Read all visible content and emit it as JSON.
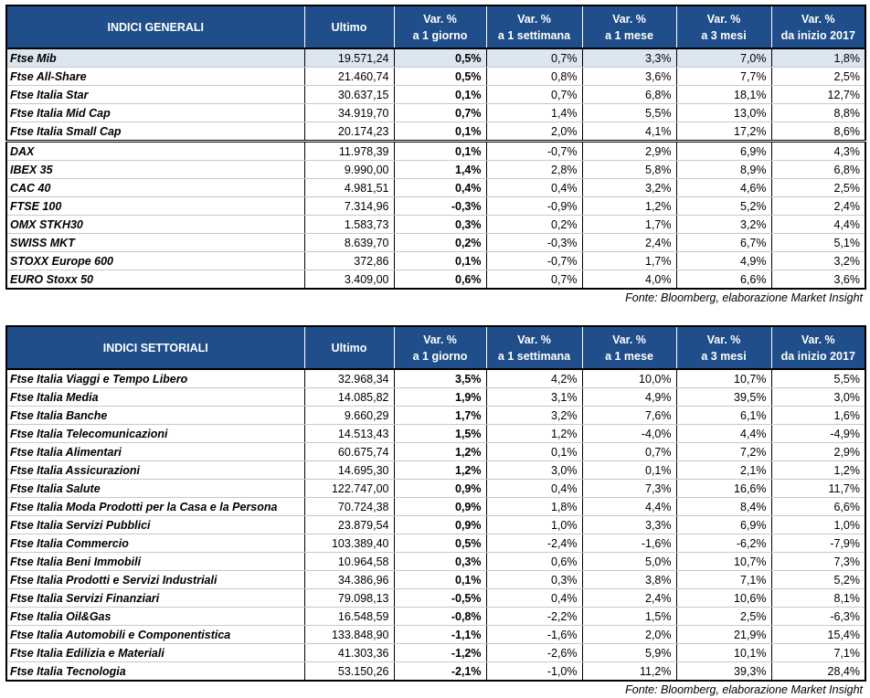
{
  "tables": [
    {
      "header": {
        "title": "INDICI GENERALI",
        "columns": [
          [
            "Ultimo"
          ],
          [
            "Var. %",
            "a 1 giorno"
          ],
          [
            "Var. %",
            "a 1 settimana"
          ],
          [
            "Var. %",
            "a 1 mese"
          ],
          [
            "Var. %",
            "a 3 mesi"
          ],
          [
            "Var. %",
            "da inizio 2017"
          ]
        ]
      },
      "groups": [
        [
          [
            "Ftse Mib",
            "19.571,24",
            "0,5%",
            "0,7%",
            "3,3%",
            "7,0%",
            "1,8%"
          ],
          [
            "Ftse All-Share",
            "21.460,74",
            "0,5%",
            "0,8%",
            "3,6%",
            "7,7%",
            "2,5%"
          ],
          [
            "Ftse Italia Star",
            "30.637,15",
            "0,1%",
            "0,7%",
            "6,8%",
            "18,1%",
            "12,7%"
          ],
          [
            "Ftse Italia Mid Cap",
            "34.919,70",
            "0,7%",
            "1,4%",
            "5,5%",
            "13,0%",
            "8,8%"
          ],
          [
            "Ftse Italia Small Cap",
            "20.174,23",
            "0,1%",
            "2,0%",
            "4,1%",
            "17,2%",
            "8,6%"
          ]
        ],
        [
          [
            "DAX",
            "11.978,39",
            "0,1%",
            "-0,7%",
            "2,9%",
            "6,9%",
            "4,3%"
          ],
          [
            "IBEX 35",
            "9.990,00",
            "1,4%",
            "2,8%",
            "5,8%",
            "8,9%",
            "6,8%"
          ],
          [
            "CAC 40",
            "4.981,51",
            "0,4%",
            "0,4%",
            "3,2%",
            "4,6%",
            "2,5%"
          ],
          [
            "FTSE 100",
            "7.314,96",
            "-0,3%",
            "-0,9%",
            "1,2%",
            "5,2%",
            "2,4%"
          ],
          [
            "OMX STKH30",
            "1.583,73",
            "0,3%",
            "0,2%",
            "1,7%",
            "3,2%",
            "4,4%"
          ],
          [
            "SWISS MKT",
            "8.639,70",
            "0,2%",
            "-0,3%",
            "2,4%",
            "6,7%",
            "5,1%"
          ],
          [
            "STOXX Europe 600",
            "372,86",
            "0,1%",
            "-0,7%",
            "1,7%",
            "4,9%",
            "3,2%"
          ],
          [
            "EURO Stoxx 50",
            "3.409,00",
            "0,6%",
            "0,7%",
            "4,0%",
            "6,6%",
            "3,6%"
          ]
        ]
      ],
      "source": "Fonte: Bloomberg, elaborazione Market Insight"
    },
    {
      "header": {
        "title": "INDICI SETTORIALI",
        "columns": [
          [
            "Ultimo"
          ],
          [
            "Var. %",
            "a 1 giorno"
          ],
          [
            "Var. %",
            "a 1 settimana"
          ],
          [
            "Var. %",
            "a 1 mese"
          ],
          [
            "Var. %",
            "a 3 mesi"
          ],
          [
            "Var. %",
            "da inizio 2017"
          ]
        ]
      },
      "groups": [
        [
          [
            "Ftse Italia Viaggi e Tempo Libero",
            "32.968,34",
            "3,5%",
            "4,2%",
            "10,0%",
            "10,7%",
            "5,5%"
          ],
          [
            "Ftse Italia Media",
            "14.085,82",
            "1,9%",
            "3,1%",
            "4,9%",
            "39,5%",
            "3,0%"
          ],
          [
            "Ftse Italia Banche",
            "9.660,29",
            "1,7%",
            "3,2%",
            "7,6%",
            "6,1%",
            "1,6%"
          ],
          [
            "Ftse Italia Telecomunicazioni",
            "14.513,43",
            "1,5%",
            "1,2%",
            "-4,0%",
            "4,4%",
            "-4,9%"
          ],
          [
            "Ftse Italia Alimentari",
            "60.675,74",
            "1,2%",
            "0,1%",
            "0,7%",
            "7,2%",
            "2,9%"
          ],
          [
            "Ftse Italia Assicurazioni",
            "14.695,30",
            "1,2%",
            "3,0%",
            "0,1%",
            "2,1%",
            "1,2%"
          ],
          [
            "Ftse Italia Salute",
            "122.747,00",
            "0,9%",
            "0,4%",
            "7,3%",
            "16,6%",
            "11,7%"
          ],
          [
            "Ftse Italia Moda Prodotti per la Casa e la Persona",
            "70.724,38",
            "0,9%",
            "1,8%",
            "4,4%",
            "8,4%",
            "6,6%"
          ],
          [
            "Ftse Italia Servizi Pubblici",
            "23.879,54",
            "0,9%",
            "1,0%",
            "3,3%",
            "6,9%",
            "1,0%"
          ],
          [
            "Ftse Italia Commercio",
            "103.389,40",
            "0,5%",
            "-2,4%",
            "-1,6%",
            "-6,2%",
            "-7,9%"
          ],
          [
            "Ftse Italia Beni Immobili",
            "10.964,58",
            "0,3%",
            "0,6%",
            "5,0%",
            "10,7%",
            "7,3%"
          ],
          [
            "Ftse Italia Prodotti e Servizi Industriali",
            "34.386,96",
            "0,1%",
            "0,3%",
            "3,8%",
            "7,1%",
            "5,2%"
          ],
          [
            "Ftse Italia Servizi Finanziari",
            "79.098,13",
            "-0,5%",
            "0,4%",
            "2,4%",
            "10,6%",
            "8,1%"
          ],
          [
            "Ftse Italia Oil&Gas",
            "16.548,59",
            "-0,8%",
            "-2,2%",
            "1,5%",
            "2,5%",
            "-6,3%"
          ],
          [
            "Ftse Italia Automobili e Componentistica",
            "133.848,90",
            "-1,1%",
            "-1,6%",
            "2,0%",
            "21,9%",
            "15,4%"
          ],
          [
            "Ftse Italia Edilizia e Materiali",
            "41.303,36",
            "-1,2%",
            "-2,6%",
            "5,9%",
            "10,1%",
            "7,1%"
          ],
          [
            "Ftse Italia Tecnologia",
            "53.150,26",
            "-2,1%",
            "-1,0%",
            "11,2%",
            "39,3%",
            "28,4%"
          ]
        ]
      ],
      "source": "Fonte: Bloomberg, elaborazione Market Insight"
    }
  ]
}
